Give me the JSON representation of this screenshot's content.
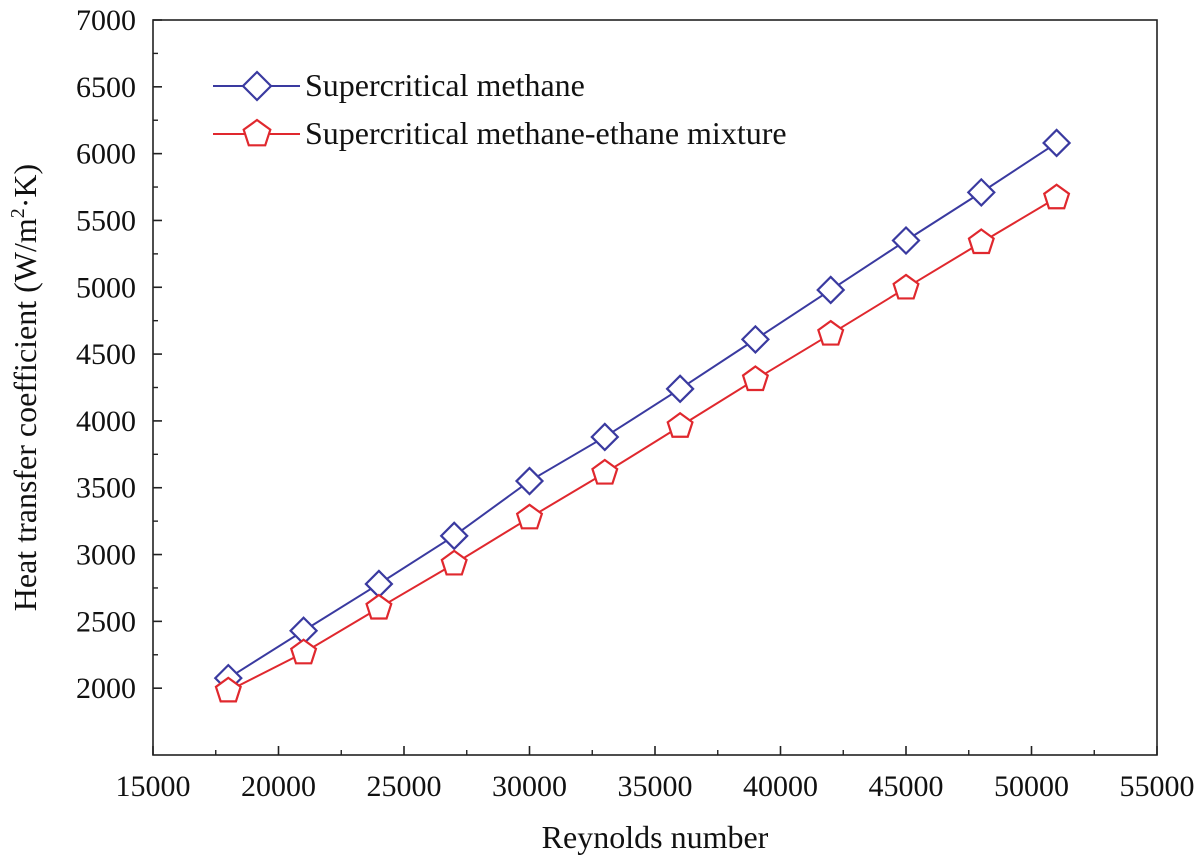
{
  "chart_data": {
    "type": "line",
    "xlabel": "Reynolds number",
    "ylabel": "Heat transfer coefficient (W/m²·K)",
    "ylabel_parts": {
      "before": "Heat transfer coefficient (W/m",
      "sup": "2",
      "after": "·K)"
    },
    "xlim": [
      15000,
      55000
    ],
    "ylim": [
      1500,
      7000
    ],
    "x_ticks": [
      15000,
      20000,
      25000,
      30000,
      35000,
      40000,
      45000,
      50000,
      55000
    ],
    "y_ticks": [
      2000,
      2500,
      3000,
      3500,
      4000,
      4500,
      5000,
      5500,
      6000,
      6500,
      7000
    ],
    "grid": false,
    "legend_position": "top-left",
    "x": [
      18000,
      21000,
      24000,
      27000,
      30000,
      33000,
      36000,
      39000,
      42000,
      45000,
      48000,
      51000
    ],
    "series": [
      {
        "name": "Supercritical methane",
        "marker": "diamond",
        "color": "#3a3aa0",
        "values": [
          2075,
          2430,
          2780,
          3140,
          3550,
          3880,
          4240,
          4610,
          4980,
          5350,
          5710,
          6080
        ]
      },
      {
        "name": "Supercritical methane-ethane mixture",
        "marker": "pentagon",
        "color": "#e0282e",
        "values": [
          1980,
          2265,
          2600,
          2930,
          3275,
          3610,
          3960,
          4310,
          4650,
          4995,
          5335,
          5670
        ]
      }
    ]
  }
}
